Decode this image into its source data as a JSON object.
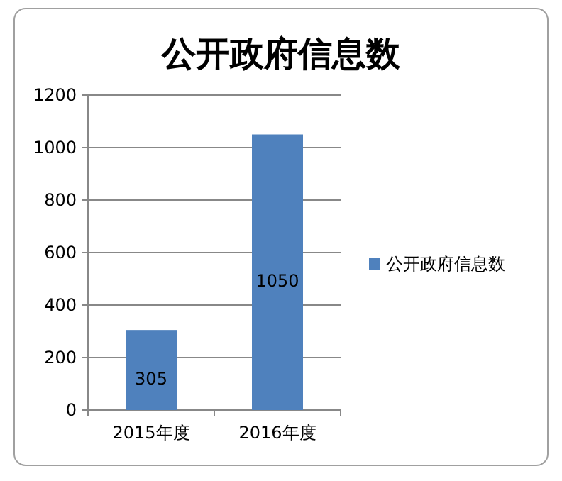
{
  "chart_data": {
    "type": "bar",
    "title": "公开政府信息数",
    "categories": [
      "2015年度",
      "2016年度"
    ],
    "series": [
      {
        "name": "公开政府信息数",
        "color": "#4f81bd",
        "values": [
          305,
          1050
        ]
      }
    ],
    "ylim": [
      0,
      1200
    ],
    "yticks": [
      0,
      200,
      400,
      600,
      800,
      1000,
      1200
    ],
    "grid": "y",
    "legend": "right",
    "data_labels": true
  }
}
